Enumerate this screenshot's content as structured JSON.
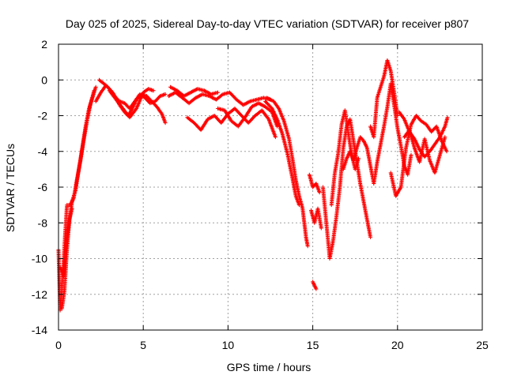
{
  "chart_data": {
    "type": "scatter",
    "title": "Day 025 of 2025, Sidereal Day-to-day VTEC variation (SDTVAR) for receiver p807",
    "xlabel": "GPS time / hours",
    "ylabel": "SDTVAR / TECUs",
    "xlim": [
      0,
      25
    ],
    "ylim": [
      -14,
      2
    ],
    "xticks": [
      0,
      5,
      10,
      15,
      20,
      25
    ],
    "yticks": [
      -14,
      -12,
      -10,
      -8,
      -6,
      -4,
      -2,
      0,
      2
    ],
    "grid": true,
    "marker": "+",
    "series": [
      {
        "name": "SDTVAR",
        "color": "#ff0000",
        "tracks": [
          [
            [
              0.0,
              -9.5
            ],
            [
              0.1,
              -12.9
            ],
            [
              0.2,
              -11.5
            ],
            [
              0.3,
              -10.2
            ],
            [
              0.4,
              -8.5
            ],
            [
              0.5,
              -7.0
            ],
            [
              0.7,
              -7.0
            ],
            [
              0.9,
              -6.6
            ],
            [
              1.1,
              -5.5
            ],
            [
              1.3,
              -4.5
            ],
            [
              1.5,
              -3.3
            ],
            [
              1.7,
              -2.2
            ],
            [
              1.9,
              -1.3
            ],
            [
              2.1,
              -0.6
            ]
          ],
          [
            [
              0.1,
              -10.5
            ],
            [
              0.3,
              -11.0
            ],
            [
              0.5,
              -8.8
            ],
            [
              0.8,
              -6.8
            ],
            [
              1.0,
              -6.2
            ],
            [
              1.2,
              -5.0
            ],
            [
              1.4,
              -3.8
            ],
            [
              1.6,
              -2.6
            ],
            [
              1.8,
              -1.6
            ],
            [
              2.0,
              -1.0
            ],
            [
              2.2,
              -0.4
            ]
          ],
          [
            [
              0.2,
              -12.8
            ],
            [
              0.35,
              -11.8
            ],
            [
              0.5,
              -9.5
            ],
            [
              0.65,
              -7.8
            ],
            [
              0.8,
              -7.2
            ]
          ],
          [
            [
              2.2,
              -1.2
            ],
            [
              2.5,
              -0.7
            ],
            [
              2.8,
              -0.3
            ],
            [
              3.0,
              -0.5
            ],
            [
              3.3,
              -0.9
            ],
            [
              3.6,
              -1.2
            ],
            [
              3.9,
              -1.3
            ],
            [
              4.2,
              -1.6
            ],
            [
              4.5,
              -1.2
            ],
            [
              4.8,
              -0.8
            ],
            [
              5.1,
              -1.0
            ],
            [
              5.4,
              -1.3
            ],
            [
              5.7,
              -1.2
            ],
            [
              6.0,
              -0.9
            ],
            [
              6.3,
              -0.8
            ]
          ],
          [
            [
              2.4,
              0.0
            ],
            [
              2.8,
              -0.3
            ],
            [
              3.2,
              -0.7
            ],
            [
              3.6,
              -1.4
            ],
            [
              3.9,
              -1.8
            ],
            [
              4.1,
              -2.0
            ],
            [
              4.3,
              -1.7
            ],
            [
              4.6,
              -1.1
            ],
            [
              4.9,
              -0.8
            ],
            [
              5.2,
              -0.9
            ],
            [
              5.5,
              -1.2
            ],
            [
              5.8,
              -1.5
            ],
            [
              6.1,
              -1.9
            ],
            [
              6.3,
              -2.4
            ]
          ],
          [
            [
              3.0,
              -0.6
            ],
            [
              3.4,
              -1.1
            ],
            [
              3.8,
              -1.6
            ],
            [
              4.2,
              -2.1
            ],
            [
              4.6,
              -1.6
            ],
            [
              5.0,
              -0.7
            ],
            [
              5.3,
              -0.5
            ],
            [
              5.6,
              -0.6
            ]
          ],
          [
            [
              6.5,
              -0.9
            ],
            [
              6.9,
              -0.7
            ],
            [
              7.3,
              -1.0
            ],
            [
              7.7,
              -1.3
            ],
            [
              8.1,
              -1.0
            ],
            [
              8.5,
              -0.8
            ],
            [
              8.9,
              -0.9
            ],
            [
              9.3,
              -1.1
            ],
            [
              9.7,
              -0.8
            ],
            [
              10.1,
              -0.7
            ],
            [
              10.5,
              -1.1
            ],
            [
              10.9,
              -1.4
            ],
            [
              11.3,
              -1.2
            ],
            [
              11.7,
              -1.1
            ],
            [
              12.1,
              -1.0
            ],
            [
              12.5,
              -1.1
            ]
          ],
          [
            [
              6.6,
              -0.4
            ],
            [
              7.0,
              -0.6
            ],
            [
              7.4,
              -0.9
            ],
            [
              7.8,
              -0.7
            ],
            [
              8.2,
              -0.5
            ],
            [
              8.6,
              -0.6
            ],
            [
              9.0,
              -0.8
            ],
            [
              9.4,
              -0.7
            ]
          ],
          [
            [
              7.6,
              -2.1
            ],
            [
              8.0,
              -2.4
            ],
            [
              8.4,
              -2.8
            ],
            [
              8.8,
              -2.2
            ],
            [
              9.2,
              -2.0
            ],
            [
              9.6,
              -2.4
            ],
            [
              10.0,
              -1.9
            ],
            [
              10.4,
              -1.6
            ],
            [
              10.8,
              -2.0
            ],
            [
              11.2,
              -2.4
            ],
            [
              11.6,
              -2.0
            ],
            [
              12.0,
              -1.7
            ],
            [
              12.4,
              -2.2
            ],
            [
              12.8,
              -3.2
            ]
          ],
          [
            [
              9.4,
              -1.6
            ],
            [
              9.8,
              -1.7
            ],
            [
              10.2,
              -2.3
            ],
            [
              10.6,
              -2.6
            ],
            [
              11.0,
              -2.1
            ],
            [
              11.4,
              -1.5
            ],
            [
              11.8,
              -1.3
            ],
            [
              12.2,
              -1.5
            ],
            [
              12.6,
              -1.8
            ],
            [
              12.9,
              -2.6
            ]
          ],
          [
            [
              12.3,
              -1.0
            ],
            [
              12.7,
              -1.2
            ],
            [
              13.0,
              -1.6
            ],
            [
              13.3,
              -2.3
            ],
            [
              13.6,
              -3.3
            ],
            [
              13.8,
              -4.4
            ],
            [
              14.0,
              -5.6
            ],
            [
              14.2,
              -6.5
            ],
            [
              14.4,
              -7.2
            ],
            [
              14.5,
              -8.0
            ],
            [
              14.6,
              -8.8
            ],
            [
              14.7,
              -9.3
            ]
          ],
          [
            [
              12.2,
              -1.2
            ],
            [
              12.6,
              -1.6
            ],
            [
              12.9,
              -2.2
            ],
            [
              13.2,
              -3.0
            ],
            [
              13.5,
              -4.1
            ],
            [
              13.8,
              -5.5
            ],
            [
              14.0,
              -6.5
            ],
            [
              14.2,
              -7.0
            ]
          ],
          [
            [
              14.8,
              -5.3
            ],
            [
              15.0,
              -6.0
            ],
            [
              15.2,
              -5.8
            ],
            [
              15.4,
              -6.3
            ]
          ],
          [
            [
              14.9,
              -7.3
            ],
            [
              15.1,
              -8.0
            ],
            [
              15.3,
              -7.2
            ],
            [
              15.5,
              -8.3
            ]
          ],
          [
            [
              15.0,
              -11.3
            ],
            [
              15.2,
              -11.7
            ]
          ],
          [
            [
              15.6,
              -6.0
            ],
            [
              15.8,
              -8.0
            ],
            [
              16.0,
              -10.0
            ],
            [
              16.2,
              -9.0
            ],
            [
              16.4,
              -7.6
            ],
            [
              16.6,
              -6.0
            ],
            [
              16.8,
              -3.8
            ],
            [
              17.0,
              -2.6
            ],
            [
              17.2,
              -2.2
            ],
            [
              17.4,
              -3.4
            ],
            [
              17.6,
              -4.6
            ],
            [
              17.8,
              -5.8
            ],
            [
              18.0,
              -6.8
            ],
            [
              18.2,
              -7.8
            ],
            [
              18.4,
              -8.8
            ]
          ],
          [
            [
              16.1,
              -7.0
            ],
            [
              16.3,
              -5.2
            ],
            [
              16.5,
              -4.1
            ],
            [
              16.7,
              -2.5
            ],
            [
              16.9,
              -1.7
            ],
            [
              17.1,
              -3.0
            ],
            [
              17.3,
              -4.2
            ],
            [
              17.5,
              -5.0
            ],
            [
              17.7,
              -4.4
            ]
          ],
          [
            [
              16.8,
              -5.0
            ],
            [
              17.0,
              -4.4
            ],
            [
              17.2,
              -4.0
            ],
            [
              17.4,
              -4.5
            ],
            [
              17.6,
              -3.8
            ],
            [
              17.8,
              -3.2
            ],
            [
              18.0,
              -3.4
            ],
            [
              18.2,
              -3.8
            ],
            [
              18.4,
              -4.8
            ],
            [
              18.6,
              -5.8
            ],
            [
              18.8,
              -4.6
            ],
            [
              19.0,
              -3.6
            ],
            [
              19.2,
              -2.6
            ],
            [
              19.4,
              -1.5
            ],
            [
              19.6,
              -0.2
            ],
            [
              19.8,
              -1.4
            ],
            [
              20.0,
              -2.7
            ],
            [
              20.2,
              -3.7
            ],
            [
              20.4,
              -4.8
            ],
            [
              20.6,
              -5.3
            ],
            [
              20.8,
              -4.2
            ]
          ],
          [
            [
              18.4,
              -2.6
            ],
            [
              18.6,
              -3.2
            ],
            [
              18.8,
              -1.0
            ],
            [
              19.0,
              -0.4
            ],
            [
              19.2,
              0.2
            ],
            [
              19.4,
              1.1
            ],
            [
              19.6,
              0.5
            ],
            [
              19.8,
              -0.7
            ],
            [
              20.0,
              -2.0
            ]
          ],
          [
            [
              19.6,
              -5.2
            ],
            [
              19.9,
              -6.5
            ],
            [
              20.2,
              -6.0
            ],
            [
              20.5,
              -3.8
            ],
            [
              20.8,
              -2.5
            ],
            [
              21.1,
              -2.0
            ],
            [
              21.4,
              -2.3
            ],
            [
              21.7,
              -2.5
            ],
            [
              22.0,
              -2.9
            ],
            [
              22.3,
              -2.6
            ],
            [
              22.6,
              -3.4
            ],
            [
              22.9,
              -4.0
            ]
          ],
          [
            [
              20.4,
              -3.2
            ],
            [
              20.7,
              -2.8
            ],
            [
              21.0,
              -3.8
            ],
            [
              21.3,
              -4.6
            ],
            [
              21.6,
              -3.3
            ],
            [
              21.9,
              -4.5
            ],
            [
              22.2,
              -5.2
            ],
            [
              22.5,
              -4.2
            ],
            [
              22.8,
              -3.2
            ]
          ],
          [
            [
              20.1,
              -1.8
            ],
            [
              20.4,
              -2.2
            ],
            [
              20.7,
              -2.9
            ],
            [
              21.0,
              -3.3
            ],
            [
              21.3,
              -3.9
            ],
            [
              21.6,
              -4.3
            ],
            [
              21.9,
              -4.0
            ],
            [
              22.2,
              -3.6
            ],
            [
              22.5,
              -3.2
            ],
            [
              22.8,
              -2.6
            ],
            [
              22.95,
              -2.1
            ]
          ]
        ]
      }
    ]
  }
}
